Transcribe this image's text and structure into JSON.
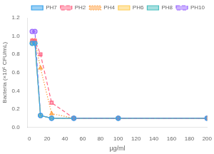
{
  "chart_data": {
    "type": "line",
    "x": [
      3.125,
      6.25,
      12.5,
      25,
      50,
      100,
      200
    ],
    "series": [
      {
        "name": "PH7",
        "values": [
          0.92,
          0.92,
          0.13,
          0.1,
          0.1,
          0.1,
          0.1
        ],
        "marker": "circle",
        "line_style": "solid"
      },
      {
        "name": "PH2",
        "values": [
          0.95,
          0.95,
          0.8,
          0.27,
          0.1,
          0.1,
          0.1
        ],
        "marker": "square",
        "line_style": "dashed"
      },
      {
        "name": "PH4",
        "values": [
          0.95,
          0.95,
          0.65,
          0.15,
          0.1,
          0.1,
          0.1
        ],
        "marker": "triangle",
        "line_style": "dotted"
      },
      {
        "name": "PH6",
        "values": [
          0.92,
          0.92,
          0.13,
          0.1,
          0.1,
          0.1,
          0.1
        ],
        "marker": "triangle_down",
        "line_style": "solid"
      },
      {
        "name": "PH8",
        "values": [
          0.92,
          0.92,
          0.13,
          0.1,
          0.1,
          0.1,
          0.1
        ],
        "marker": "diamond",
        "line_style": "solid"
      },
      {
        "name": "PH10",
        "values": [
          1.05,
          1.05,
          0.13,
          0.1,
          0.1,
          0.1,
          0.1
        ],
        "marker": "circle",
        "line_style": "dashed"
      }
    ],
    "xlabel": "μg/ml",
    "ylabel": "Bacteria (×10⁶ CFU/mL)",
    "xlim": [
      -2,
      200
    ],
    "xticks": [
      0,
      20,
      40,
      60,
      80,
      100,
      120,
      140,
      160,
      180,
      200
    ],
    "ylim": [
      0.0,
      1.2
    ],
    "yticks": [
      {
        "value": 0,
        "label": "0.0"
      },
      0.2,
      0.4,
      0.6,
      0.8,
      {
        "value": 1,
        "label": "1.0"
      },
      1.2
    ],
    "grid": false,
    "legend": "upper right"
  }
}
